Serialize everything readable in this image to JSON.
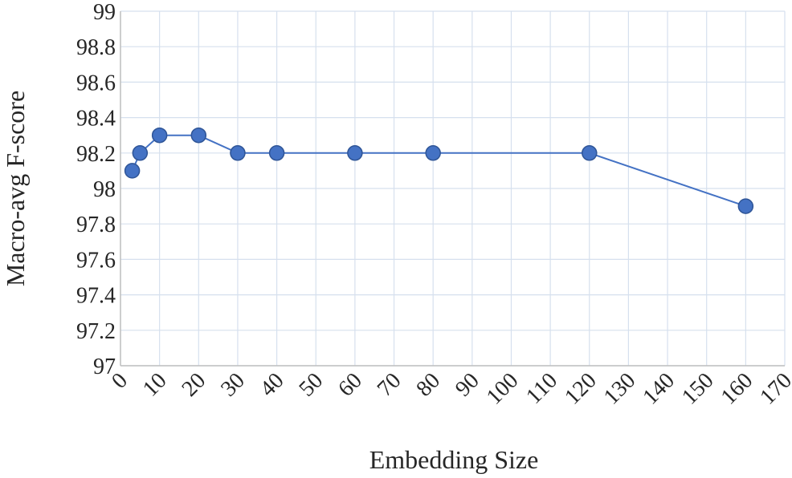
{
  "chart_data": {
    "type": "line",
    "title": "",
    "xlabel": "Embedding Size",
    "ylabel": "Macro-avg F-score",
    "xlim": [
      0,
      170
    ],
    "ylim": [
      97,
      99
    ],
    "x_ticks": [
      "0",
      "10",
      "20",
      "30",
      "40",
      "50",
      "60",
      "70",
      "80",
      "90",
      "100",
      "110",
      "120",
      "130",
      "140",
      "150",
      "160",
      "170"
    ],
    "y_ticks": [
      "97",
      "97.2",
      "97.4",
      "97.6",
      "97.8",
      "98",
      "98.2",
      "98.4",
      "98.6",
      "98.8",
      "99"
    ],
    "x_tick_rotation": "-45deg",
    "grid": true,
    "legend": "none",
    "series": [
      {
        "x": [
          3,
          5,
          10,
          20,
          30,
          40,
          60,
          80,
          120,
          160
        ],
        "y": [
          98.1,
          98.2,
          98.3,
          98.3,
          98.2,
          98.2,
          98.2,
          98.2,
          98.2,
          97.9
        ],
        "color": "#4472C4",
        "marker_fill": "#4472C4",
        "marker_stroke": "#2F5597"
      }
    ],
    "colors": {
      "grid": "#D6E0EE",
      "axis": "#BFBFBF",
      "text": "#262626"
    }
  }
}
